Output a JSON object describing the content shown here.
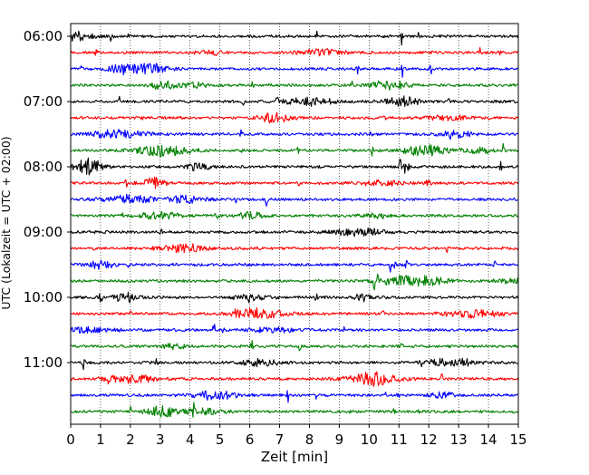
{
  "chart_data": {
    "type": "line",
    "title": "",
    "xlabel": "Zeit  [min]",
    "ylabel": "UTC (Lokalzeit = UTC + 02:00)",
    "xlim": [
      0,
      15
    ],
    "x_ticks": [
      "0",
      "1",
      "2",
      "3",
      "4",
      "5",
      "6",
      "7",
      "8",
      "9",
      "10",
      "11",
      "12",
      "13",
      "14",
      "15"
    ],
    "y_ticks": [
      "06:00",
      "07:00",
      "08:00",
      "09:00",
      "10:00",
      "11:00"
    ],
    "vertical_grid": true,
    "trace_colors": [
      "#000000",
      "#ff0000",
      "#0000ff",
      "#008000"
    ],
    "series": [
      {
        "start": "06:00",
        "color": "#000000"
      },
      {
        "start": "06:15",
        "color": "#ff0000"
      },
      {
        "start": "06:30",
        "color": "#0000ff"
      },
      {
        "start": "06:45",
        "color": "#008000"
      },
      {
        "start": "07:00",
        "color": "#000000"
      },
      {
        "start": "07:15",
        "color": "#ff0000"
      },
      {
        "start": "07:30",
        "color": "#0000ff"
      },
      {
        "start": "07:45",
        "color": "#008000"
      },
      {
        "start": "08:00",
        "color": "#000000"
      },
      {
        "start": "08:15",
        "color": "#ff0000"
      },
      {
        "start": "08:30",
        "color": "#0000ff"
      },
      {
        "start": "08:45",
        "color": "#008000"
      },
      {
        "start": "09:00",
        "color": "#000000"
      },
      {
        "start": "09:15",
        "color": "#ff0000"
      },
      {
        "start": "09:30",
        "color": "#0000ff"
      },
      {
        "start": "09:45",
        "color": "#008000"
      },
      {
        "start": "10:00",
        "color": "#000000"
      },
      {
        "start": "10:15",
        "color": "#ff0000"
      },
      {
        "start": "10:30",
        "color": "#0000ff"
      },
      {
        "start": "10:45",
        "color": "#008000"
      },
      {
        "start": "11:00",
        "color": "#000000"
      },
      {
        "start": "11:15",
        "color": "#ff0000"
      },
      {
        "start": "11:30",
        "color": "#0000ff"
      },
      {
        "start": "11:45",
        "color": "#008000"
      }
    ]
  }
}
